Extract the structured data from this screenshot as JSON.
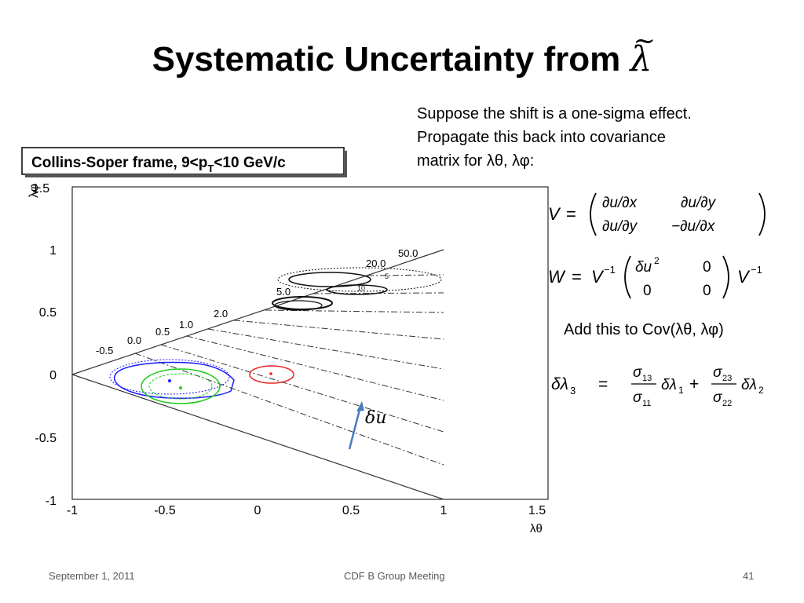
{
  "slide": {
    "title_text": "Systematic Uncertainty from",
    "title_symbol": "λ",
    "title_symbol_accent": "~",
    "description_lines": [
      "Suppose the shift is a one-sigma effect.",
      "Propagate this back into covariance",
      "matrix for λθ, λφ:"
    ],
    "add_text": "Add this to Cov(λθ, λφ)",
    "equation_V": "V = ( ∂u/∂x  ∂u/∂y ; ∂u/∂y  −∂u/∂x )",
    "equation_W": "W = V⁻¹ ( δu²  0 ; 0  0 ) V⁻¹",
    "equation_dl3": "δλ3 = (σ13/σ11) δλ1 + (σ23/σ22) δλ2",
    "delta_u_label": "δu",
    "footer_date": "September 1, 2011",
    "footer_meeting": "CDF B Group Meeting",
    "footer_page": "41"
  },
  "plot": {
    "frame_label": "Collins-Soper frame, 9<p",
    "frame_label_sub": "T",
    "frame_label_end": "<10 GeV/c",
    "x_axis_label": "λθ",
    "y_axis_label": "λφ",
    "x_ticks": [
      "-1",
      "-0.5",
      "0",
      "0.5",
      "1",
      "1.5"
    ],
    "y_ticks": [
      "1.5",
      "1",
      "0.5",
      "0",
      "-0.5",
      "-1"
    ],
    "contour_labels": [
      "-0.5",
      "0.0",
      "0.5",
      "1.0",
      "2.0",
      "5.0",
      "20.0",
      "50.0"
    ],
    "colors": {
      "blue": "#1a1aff",
      "green": "#22cc22",
      "red": "#e62020",
      "arrow": "#4a7bbf"
    }
  }
}
